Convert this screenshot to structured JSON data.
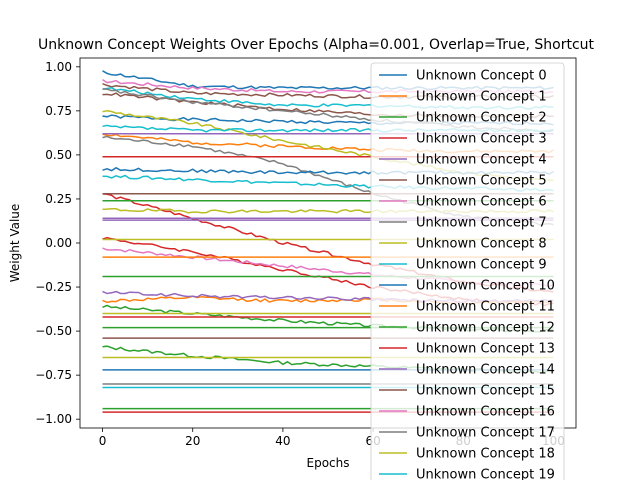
{
  "chart_data": {
    "type": "line",
    "title": "Unknown Concept Weights Over Epochs (Alpha=0.001, Overlap=True, Shortcut",
    "xlabel": "Epochs",
    "ylabel": "Weight Value",
    "xlim": [
      -5,
      105
    ],
    "ylim": [
      -1.05,
      1.05
    ],
    "x_ticks": [
      0,
      20,
      40,
      60,
      80,
      100
    ],
    "y_ticks": [
      -1.0,
      -0.75,
      -0.5,
      -0.25,
      0.0,
      0.25,
      0.5,
      0.75,
      1.0
    ],
    "x_tick_labels": [
      "0",
      "20",
      "40",
      "60",
      "80",
      "100"
    ],
    "y_tick_labels": [
      "−1.00",
      "−0.75",
      "−0.50",
      "−0.25",
      "0.00",
      "0.25",
      "0.50",
      "0.75",
      "1.00"
    ],
    "grid": false,
    "legend_position": "right (overflowing the axes)",
    "epochs_start": 0,
    "epochs_end": 100,
    "series": [
      {
        "name": "Unknown Concept 0",
        "color": "#1f77b4",
        "values": [
          0.72,
          0.7,
          0.69,
          0.68,
          0.68,
          0.68
        ]
      },
      {
        "name": "Unknown Concept 1",
        "color": "#ff7f0e",
        "values": [
          0.62,
          0.57,
          0.55,
          0.53,
          0.52,
          0.52
        ]
      },
      {
        "name": "Unknown Concept 2",
        "color": "#2ca02c",
        "values": [
          -0.36,
          -0.4,
          -0.44,
          -0.47,
          -0.49,
          -0.5
        ]
      },
      {
        "name": "Unknown Concept 3",
        "color": "#d62728",
        "values": [
          0.03,
          -0.05,
          -0.15,
          -0.25,
          -0.32,
          -0.35
        ]
      },
      {
        "name": "Unknown Concept 4",
        "color": "#9467bd",
        "values": [
          0.62,
          0.62,
          0.62,
          0.62,
          0.62,
          0.62
        ]
      },
      {
        "name": "Unknown Concept 5",
        "color": "#8c564b",
        "values": [
          0.9,
          0.85,
          0.84,
          0.83,
          0.83,
          0.83
        ]
      },
      {
        "name": "Unknown Concept 6",
        "color": "#e377c2",
        "values": [
          -0.03,
          -0.08,
          -0.13,
          -0.18,
          -0.22,
          -0.24
        ]
      },
      {
        "name": "Unknown Concept 7",
        "color": "#7f7f7f",
        "values": [
          0.6,
          0.55,
          0.45,
          0.28,
          0.15,
          0.1
        ]
      },
      {
        "name": "Unknown Concept 8",
        "color": "#bcbd22",
        "values": [
          0.75,
          0.68,
          0.58,
          0.49,
          0.4,
          0.35
        ]
      },
      {
        "name": "Unknown Concept 9",
        "color": "#17becf",
        "values": [
          0.88,
          0.82,
          0.78,
          0.78,
          0.77,
          0.77
        ]
      },
      {
        "name": "Unknown Concept 10",
        "color": "#1f77b4",
        "values": [
          0.97,
          0.89,
          0.88,
          0.88,
          0.88,
          0.88
        ]
      },
      {
        "name": "Unknown Concept 11",
        "color": "#ff7f0e",
        "values": [
          -0.33,
          -0.31,
          -0.33,
          -0.32,
          -0.34,
          -0.33
        ]
      },
      {
        "name": "Unknown Concept 12",
        "color": "#2ca02c",
        "values": [
          -0.59,
          -0.64,
          -0.68,
          -0.7,
          -0.72,
          -0.73
        ]
      },
      {
        "name": "Unknown Concept 13",
        "color": "#d62728",
        "values": [
          0.28,
          0.14,
          0.0,
          -0.12,
          -0.22,
          -0.28
        ]
      },
      {
        "name": "Unknown Concept 14",
        "color": "#9467bd",
        "values": [
          0.14,
          0.14,
          0.14,
          0.14,
          0.14,
          0.14
        ]
      },
      {
        "name": "Unknown Concept 15",
        "color": "#8c564b",
        "values": [
          0.85,
          0.8,
          0.76,
          0.73,
          0.72,
          0.72
        ]
      },
      {
        "name": "Unknown Concept 16",
        "color": "#e377c2",
        "values": [
          0.92,
          0.88,
          0.86,
          0.86,
          0.86,
          0.86
        ]
      },
      {
        "name": "Unknown Concept 17",
        "color": "#7f7f7f",
        "values": [
          0.87,
          0.8,
          0.75,
          0.7,
          0.66,
          0.64
        ]
      },
      {
        "name": "Unknown Concept 18",
        "color": "#bcbd22",
        "values": [
          0.19,
          0.18,
          0.18,
          0.18,
          0.18,
          0.18
        ]
      },
      {
        "name": "Unknown Concept 19",
        "color": "#17becf",
        "values": [
          0.38,
          0.36,
          0.34,
          0.32,
          0.31,
          0.3
        ]
      },
      {
        "color": "#1f77b4",
        "values": [
          -0.72,
          -0.72,
          -0.72,
          -0.72,
          -0.72,
          -0.72
        ]
      },
      {
        "color": "#ff7f0e",
        "values": [
          -0.08,
          -0.08,
          -0.08,
          -0.08,
          -0.08,
          -0.08
        ]
      },
      {
        "color": "#2ca02c",
        "values": [
          -0.94,
          -0.94,
          -0.94,
          -0.94,
          -0.94,
          -0.94
        ]
      },
      {
        "color": "#d62728",
        "values": [
          -0.96,
          -0.96,
          -0.96,
          -0.96,
          -0.96,
          -0.96
        ]
      },
      {
        "color": "#9467bd",
        "values": [
          0.13,
          0.13,
          0.13,
          0.13,
          0.13,
          0.13
        ]
      },
      {
        "color": "#8c564b",
        "values": [
          0.28,
          0.28,
          0.28,
          0.28,
          0.28,
          0.28
        ]
      },
      {
        "color": "#8c564b",
        "values": [
          -0.54,
          -0.54,
          -0.54,
          -0.54,
          -0.54,
          -0.54
        ]
      },
      {
        "color": "#bcbd22",
        "values": [
          -0.65,
          -0.65,
          -0.65,
          -0.65,
          -0.65,
          -0.65
        ]
      },
      {
        "color": "#17becf",
        "values": [
          -0.82,
          -0.82,
          -0.82,
          -0.82,
          -0.82,
          -0.82
        ]
      },
      {
        "color": "#2ca02c",
        "values": [
          0.24,
          0.24,
          0.24,
          0.24,
          0.24,
          0.24
        ]
      },
      {
        "color": "#d62728",
        "values": [
          0.49,
          0.49,
          0.49,
          0.49,
          0.49,
          0.49
        ]
      },
      {
        "color": "#2ca02c",
        "values": [
          -0.19,
          -0.19,
          -0.19,
          -0.19,
          -0.19,
          -0.19
        ]
      },
      {
        "color": "#bcbd22",
        "values": [
          0.02,
          0.02,
          0.02,
          0.02,
          0.02,
          0.02
        ]
      },
      {
        "color": "#1f77b4",
        "values": [
          0.42,
          0.41,
          0.4,
          0.4,
          0.4,
          0.4
        ]
      },
      {
        "color": "#7f7f7f",
        "values": [
          -0.8,
          -0.8,
          -0.8,
          -0.8,
          -0.8,
          -0.8
        ]
      },
      {
        "color": "#9467bd",
        "values": [
          -0.28,
          -0.3,
          -0.31,
          -0.32,
          -0.33,
          -0.33
        ]
      },
      {
        "color": "#17becf",
        "values": [
          0.66,
          0.64,
          0.64,
          0.64,
          0.64,
          0.64
        ]
      },
      {
        "color": "#2ca02c",
        "values": [
          -0.48,
          -0.48,
          -0.48,
          -0.48,
          -0.48,
          -0.48
        ]
      },
      {
        "color": "#d62728",
        "values": [
          -0.42,
          -0.42,
          -0.42,
          -0.42,
          -0.42,
          -0.42
        ]
      },
      {
        "color": "#bcbd22",
        "values": [
          -0.4,
          -0.4,
          -0.4,
          -0.4,
          -0.4,
          -0.4
        ]
      }
    ]
  }
}
